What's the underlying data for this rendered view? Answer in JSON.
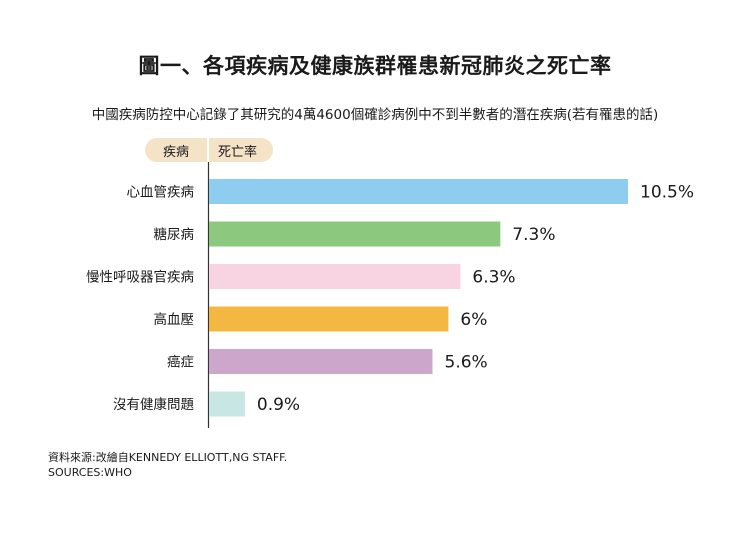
{
  "title": "圖一、各項疾病及健康族群罹患新冠肺炎之死亡率",
  "subtitle": "中國疾病防控中心記錄了其研究的4萬4600個確診病例中不到半數者的潛在疾病(若有罹患的話)",
  "header": {
    "category_label": "疾病",
    "value_label": "死亡率"
  },
  "chart_data": {
    "type": "bar",
    "orientation": "horizontal",
    "categories": [
      "心血管疾病",
      "糖尿病",
      "慢性呼吸器官疾病",
      "高血壓",
      "癌症",
      "沒有健康問題"
    ],
    "values": [
      10.5,
      7.3,
      6.3,
      6,
      5.6,
      0.9
    ],
    "value_labels": [
      "10.5%",
      "7.3%",
      "6.3%",
      "6%",
      "5.6%",
      "0.9%"
    ],
    "colors": [
      "#8ecdf0",
      "#8cc87e",
      "#f8d3e2",
      "#f4b742",
      "#cda6cc",
      "#c8e6e4"
    ],
    "unit": "%",
    "xlim": [
      0,
      10.5
    ]
  },
  "source": {
    "line1": "資料來源:改繪自KENNEDY ELLIOTT,NG STAFF.",
    "line2": "SOURCES:WHO"
  }
}
